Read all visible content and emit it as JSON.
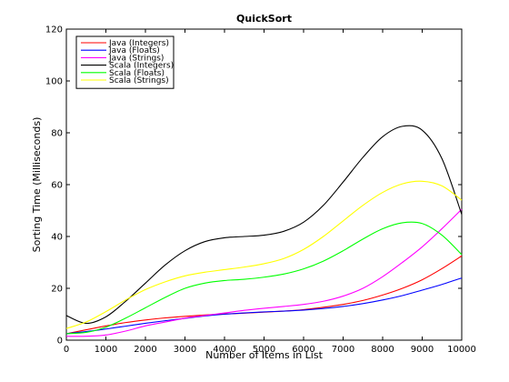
{
  "chart_data": {
    "type": "line",
    "title": "QuickSort",
    "xlabel": "Number of Items in List",
    "ylabel": "Sorting Time (Milliseconds)",
    "xlim": [
      0,
      10000
    ],
    "ylim": [
      0,
      120
    ],
    "xticks": [
      0,
      1000,
      2000,
      3000,
      4000,
      5000,
      6000,
      7000,
      8000,
      9000,
      10000
    ],
    "yticks": [
      0,
      20,
      40,
      60,
      80,
      100,
      120
    ],
    "grid": false,
    "legend_position": "top-left",
    "x": [
      0,
      500,
      1000,
      1500,
      2000,
      2500,
      3000,
      3500,
      4000,
      4500,
      5000,
      5500,
      6000,
      6500,
      7000,
      7500,
      8000,
      8500,
      9000,
      9500,
      10000
    ],
    "series": [
      {
        "name": "Java (Integers)",
        "color": "#ff0000",
        "values": [
          2.5,
          4.0,
          5.5,
          6.8,
          7.8,
          8.6,
          9.2,
          9.7,
          10.1,
          10.4,
          10.8,
          11.2,
          11.8,
          12.7,
          13.8,
          15.3,
          17.4,
          20.0,
          23.3,
          27.6,
          32.5
        ]
      },
      {
        "name": "Java (Floats)",
        "color": "#0000ff",
        "values": [
          2.5,
          3.3,
          4.3,
          5.4,
          6.5,
          7.5,
          8.4,
          9.3,
          10.0,
          10.5,
          10.9,
          11.2,
          11.6,
          12.2,
          13.0,
          14.1,
          15.5,
          17.2,
          19.3,
          21.5,
          24.0
        ]
      },
      {
        "name": "Java (Strings)",
        "color": "#ff00ff",
        "values": [
          1.5,
          1.5,
          2.0,
          3.5,
          5.5,
          7.0,
          8.5,
          9.5,
          10.5,
          11.5,
          12.3,
          13.0,
          13.8,
          15.0,
          17.0,
          20.0,
          24.5,
          30.0,
          36.0,
          43.0,
          50.5
        ]
      },
      {
        "name": "Scala (Integers)",
        "color": "#000000",
        "values": [
          9.5,
          6.5,
          9.0,
          15.0,
          22.0,
          29.0,
          34.5,
          38.0,
          39.5,
          40.0,
          40.5,
          42.0,
          45.5,
          52.0,
          61.0,
          70.5,
          78.5,
          82.5,
          81.0,
          70.0,
          48.5
        ]
      },
      {
        "name": "Scala (Floats)",
        "color": "#00ff00",
        "values": [
          2.5,
          3.0,
          5.0,
          8.5,
          12.5,
          16.5,
          20.0,
          22.0,
          23.0,
          23.5,
          24.3,
          25.5,
          27.5,
          30.5,
          34.5,
          39.0,
          43.0,
          45.3,
          45.0,
          40.5,
          33.0
        ]
      },
      {
        "name": "Scala (Strings)",
        "color": "#ffff00",
        "values": [
          4.5,
          7.0,
          11.0,
          15.5,
          19.5,
          22.5,
          24.8,
          26.2,
          27.2,
          28.2,
          29.5,
          31.5,
          35.0,
          40.0,
          46.0,
          52.0,
          57.0,
          60.3,
          61.3,
          59.5,
          54.0
        ]
      }
    ]
  }
}
